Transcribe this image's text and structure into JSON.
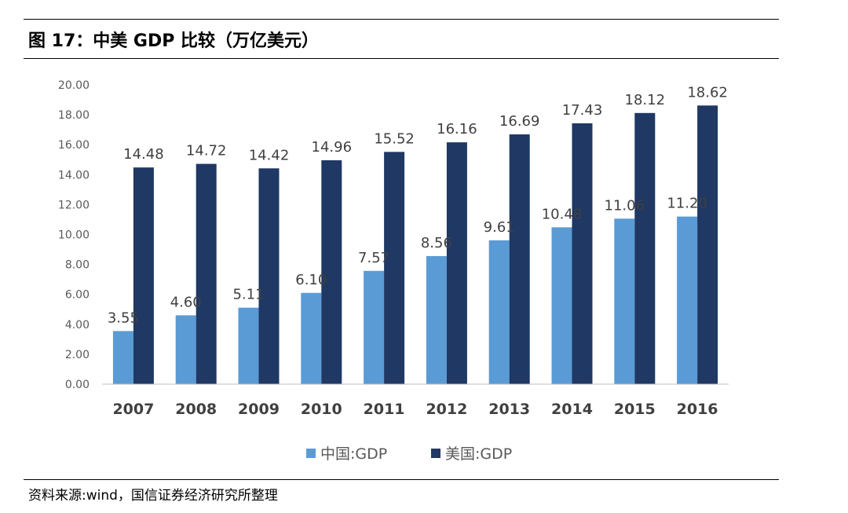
{
  "figure": {
    "title": "图 17：中美 GDP 比较（万亿美元）",
    "source": "资料来源:wind，国信证券经济研究所整理"
  },
  "colors": {
    "china": "#5B9BD5",
    "usa": "#1F3864",
    "gridline": "#D9D9D9",
    "axis": "#BFBFBF"
  },
  "chart_data": {
    "type": "bar",
    "categories": [
      "2007",
      "2008",
      "2009",
      "2010",
      "2011",
      "2012",
      "2013",
      "2014",
      "2015",
      "2016"
    ],
    "series": [
      {
        "name": "中国:GDP",
        "values": [
          3.55,
          4.6,
          5.11,
          6.1,
          7.57,
          8.56,
          9.61,
          10.48,
          11.06,
          11.2
        ]
      },
      {
        "name": "美国:GDP",
        "values": [
          14.48,
          14.72,
          14.42,
          14.96,
          15.52,
          16.16,
          16.69,
          17.43,
          18.12,
          18.62
        ]
      }
    ],
    "yticks": [
      "0.00",
      "2.00",
      "4.00",
      "6.00",
      "8.00",
      "10.00",
      "12.00",
      "14.00",
      "16.00",
      "18.00",
      "20.00"
    ],
    "ylim": [
      0,
      20
    ],
    "grid": false,
    "legend": "bottom",
    "data_labels": true
  }
}
